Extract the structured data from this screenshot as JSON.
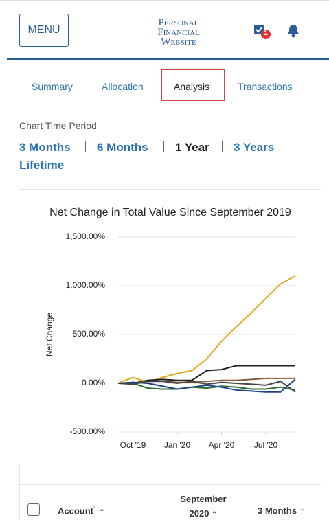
{
  "header": {
    "menu": "MENU",
    "logo": [
      "Personal",
      "Financial",
      "Website"
    ],
    "badge": "1"
  },
  "tabs": [
    "Summary",
    "Allocation",
    "Analysis",
    "Transactions"
  ],
  "period": {
    "label": "Chart Time Period",
    "options": [
      "3 Months",
      "6 Months",
      "1 Year",
      "3 Years",
      "Lifetime"
    ]
  },
  "chart_data": {
    "type": "line",
    "title": "Net Change in Total Value Since September 2019",
    "y_label": "Net Change",
    "categories": [
      null,
      "Oct '19",
      null,
      null,
      "Jan '20",
      null,
      null,
      "Apr '20",
      null,
      null,
      "Jul '20",
      null,
      null
    ],
    "series": [
      {
        "color": "#e0a91f",
        "values": [
          0,
          60,
          10,
          60,
          100,
          130,
          250,
          430,
          580,
          720,
          870,
          1020,
          1100
        ]
      },
      {
        "color": "#222222",
        "values": [
          0,
          0,
          30,
          40,
          30,
          30,
          130,
          140,
          180,
          180,
          180,
          180,
          180
        ]
      },
      {
        "color": "#8a5a3a",
        "values": [
          0,
          0,
          20,
          20,
          10,
          10,
          20,
          30,
          30,
          40,
          50,
          50,
          50
        ]
      },
      {
        "color": "#2e6b2e",
        "values": [
          0,
          0,
          -50,
          -60,
          -60,
          -40,
          -50,
          -30,
          -40,
          -60,
          -60,
          -40,
          -70
        ]
      },
      {
        "color": "#1f3f8a",
        "values": [
          0,
          10,
          0,
          -30,
          -60,
          -40,
          -20,
          -40,
          -70,
          -80,
          -90,
          -90,
          40
        ]
      },
      {
        "color": "#444444",
        "values": [
          0,
          -10,
          20,
          20,
          0,
          20,
          -10,
          10,
          0,
          -10,
          -20,
          20,
          -90
        ]
      }
    ],
    "ylim": [
      -500,
      1500
    ],
    "yticks": [
      {
        "value": -500,
        "label": "-500.00%"
      },
      {
        "value": 0,
        "label": "0.00%"
      },
      {
        "value": 500,
        "label": "500.00%"
      },
      {
        "value": 1000,
        "label": "1,000.00%"
      },
      {
        "value": 1500,
        "label": "1,500.00%"
      }
    ],
    "grid": true
  },
  "table": {
    "columns": [
      "Account",
      "September 2020",
      "3 Months"
    ],
    "footnote": "1"
  }
}
